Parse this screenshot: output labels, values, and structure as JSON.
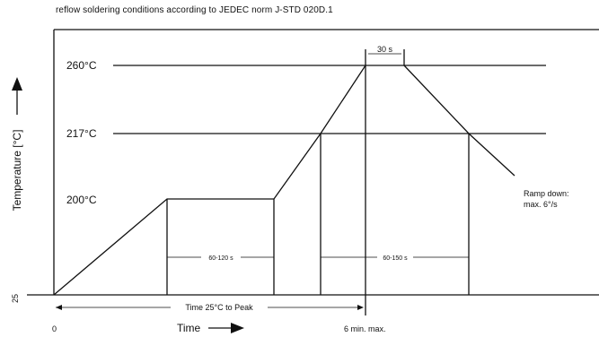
{
  "title": "reflow soldering conditions according to JEDEC norm J-STD 020D.1",
  "y_labels": {
    "t260": "260°C",
    "t217": "217°C",
    "t200": "200°C",
    "t25": "25"
  },
  "x_labels": {
    "zero": "0",
    "max": "6 min. max."
  },
  "axis_titles": {
    "y": "Temperature [°C]",
    "x": "Time"
  },
  "annotations": {
    "peak_duration": "30 s",
    "soak_duration": "60-120 s",
    "liquidus_duration": "60-150 s",
    "time_to_peak": "Time 25°C to Peak",
    "ramp_down_line1": "Ramp down:",
    "ramp_down_line2": "max. 6°/s"
  }
}
